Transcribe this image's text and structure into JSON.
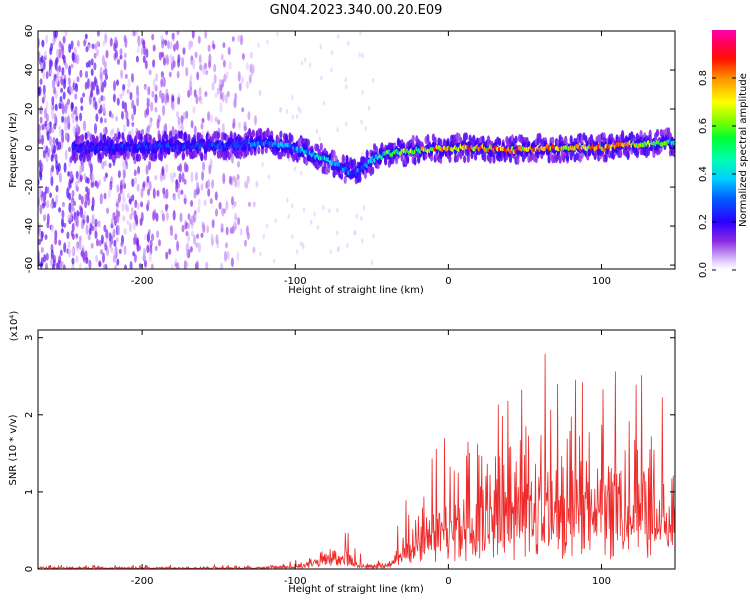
{
  "title": "GN04.2023.340.00.20.E09",
  "colors": {
    "snr_line": "#ee2a2a",
    "band_core": "#6a00ff",
    "background": "#ffffff"
  },
  "chart_data": [
    {
      "type": "heatmap",
      "xlabel": "Height of straight line (km)",
      "ylabel": "Frequency (Hz)",
      "xlim": [
        -268,
        148
      ],
      "ylim": [
        -62,
        60
      ],
      "xticks": [
        -200,
        -100,
        0,
        100
      ],
      "xtick_labels": [
        "-200",
        "-100",
        "0",
        "100"
      ],
      "yticks": [
        60,
        40,
        20,
        0,
        -20,
        -40,
        -60
      ],
      "ytick_labels": [
        "60",
        "40",
        "20",
        "0",
        "-20",
        "-40",
        "-60"
      ],
      "grid": false,
      "colorbar": {
        "label": "Normalized spectral amplitude",
        "range": [
          0,
          1
        ],
        "ticks": [
          0.0,
          0.2,
          0.4,
          0.6,
          0.8
        ],
        "tick_labels": [
          "0.0",
          "0.2",
          "0.4",
          "0.6",
          "0.8"
        ],
        "colormap": "hsv-spectral"
      },
      "ridge": {
        "x": [
          -240,
          -200,
          -150,
          -120,
          -100,
          -80,
          -62,
          -55,
          -50,
          -40,
          -20,
          0,
          20,
          40,
          60,
          80,
          100,
          120,
          148
        ],
        "y": [
          0,
          1,
          1,
          3,
          0,
          -6,
          -13,
          -10,
          -6,
          -3,
          -1,
          0,
          0,
          -1,
          0,
          0,
          0,
          2,
          3
        ],
        "amplitude": [
          0.25,
          0.3,
          0.3,
          0.35,
          0.4,
          0.45,
          0.35,
          0.35,
          0.4,
          0.55,
          0.7,
          0.8,
          0.8,
          0.75,
          0.8,
          0.8,
          0.8,
          0.7,
          0.5
        ]
      },
      "noise_region_x": [
        -268,
        -125
      ]
    },
    {
      "type": "line",
      "xlabel": "Height of straight line (km)",
      "ylabel": "SNR (10 * v/v)",
      "y_multiplier": "(x10⁴)",
      "xlim": [
        -268,
        148
      ],
      "ylim": [
        0,
        3.1
      ],
      "xticks": [
        -200,
        -100,
        0,
        100
      ],
      "xtick_labels": [
        "-200",
        "-100",
        "0",
        "100"
      ],
      "yticks": [
        0,
        1,
        2,
        3
      ],
      "ytick_labels": [
        "0",
        "1",
        "2",
        "3"
      ],
      "grid": false,
      "envelope": {
        "x": [
          -268,
          -150,
          -110,
          -100,
          -90,
          -80,
          -75,
          -70,
          -60,
          -55,
          -50,
          -40,
          -35,
          -30,
          -20,
          -10,
          0,
          20,
          40,
          60,
          80,
          100,
          120,
          130,
          140,
          148
        ],
        "y_max": [
          0.05,
          0.06,
          0.06,
          0.12,
          0.2,
          0.45,
          0.6,
          0.7,
          0.28,
          0.18,
          0.1,
          0.15,
          0.35,
          0.95,
          1.25,
          1.6,
          1.75,
          2.0,
          2.7,
          2.8,
          2.75,
          2.65,
          2.7,
          3.1,
          2.9,
          2.95
        ],
        "y_typ": [
          0.02,
          0.02,
          0.03,
          0.05,
          0.1,
          0.2,
          0.25,
          0.2,
          0.1,
          0.06,
          0.04,
          0.08,
          0.2,
          0.4,
          0.6,
          0.75,
          0.9,
          1.1,
          1.25,
          1.4,
          1.35,
          1.35,
          1.3,
          1.2,
          1.0,
          0.9
        ]
      }
    }
  ]
}
